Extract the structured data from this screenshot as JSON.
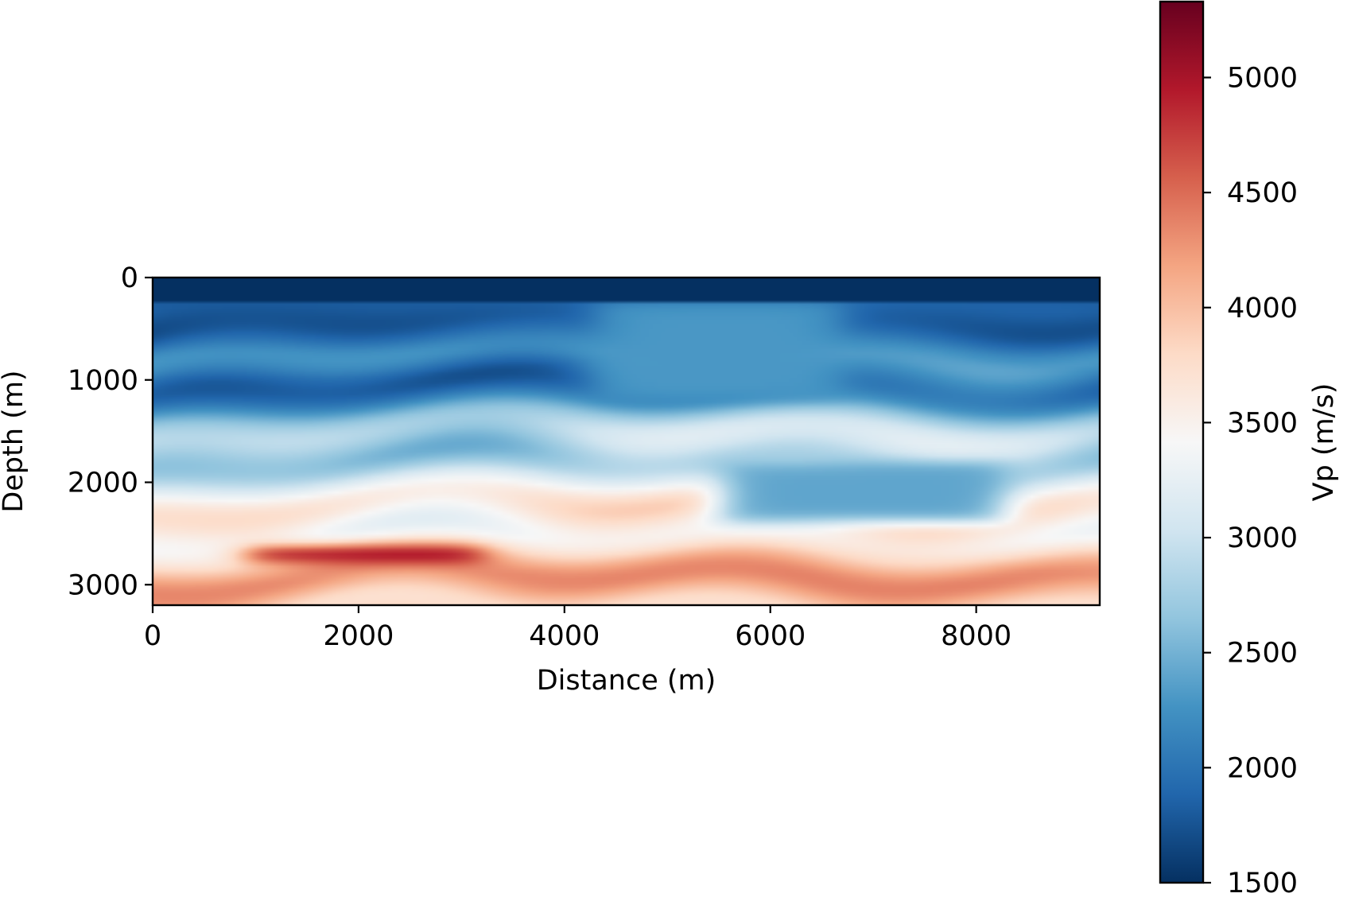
{
  "chart_data": {
    "type": "heatmap",
    "title": "",
    "xlabel": "Distance (m)",
    "ylabel": "Depth (m)",
    "xlim": [
      0,
      9200
    ],
    "ylim": [
      3200,
      0
    ],
    "x_ticks": [
      0,
      2000,
      4000,
      6000,
      8000
    ],
    "y_ticks": [
      0,
      1000,
      2000,
      3000
    ],
    "colorbar": {
      "label": "Vp (m/s)",
      "colormap": "RdBu_r",
      "range": [
        1500,
        5330
      ],
      "ticks": [
        1500,
        2000,
        2500,
        3000,
        3500,
        4000,
        4500,
        5000
      ]
    },
    "water_layer": {
      "depth_max": 230,
      "vp": 1500
    },
    "velocity_trend": [
      {
        "depth": 230,
        "vp": 1800
      },
      {
        "depth": 1000,
        "vp": 2000
      },
      {
        "depth": 1500,
        "vp": 2500
      },
      {
        "depth": 2000,
        "vp": 3100
      },
      {
        "depth": 2500,
        "vp": 3600
      },
      {
        "depth": 3000,
        "vp": 4000
      },
      {
        "depth": 3200,
        "vp": 4050
      }
    ],
    "features": [
      {
        "feature": "high-velocity lens",
        "x_range": [
          900,
          3200
        ],
        "depth_range": [
          2630,
          2780
        ],
        "vp": 5200
      },
      {
        "feature": "fault block",
        "x_range": [
          4300,
          6700
        ],
        "depth_range": [
          230,
          1200
        ],
        "vp": 2300
      },
      {
        "feature": "low-velocity wedge",
        "x_range": [
          5500,
          8300
        ],
        "depth_range": [
          1800,
          2400
        ],
        "vp": 2400
      }
    ]
  }
}
